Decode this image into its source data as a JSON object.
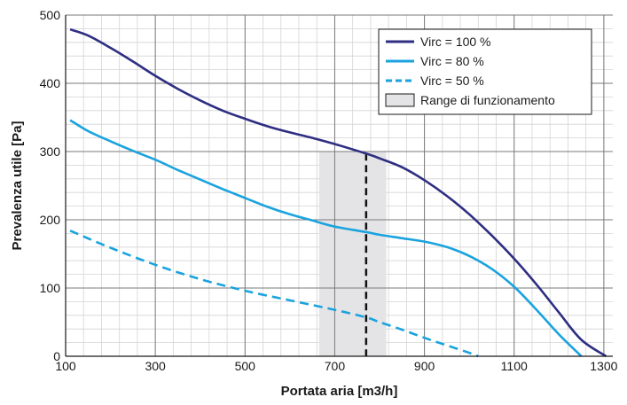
{
  "chart_data": {
    "type": "line",
    "title": "",
    "xlabel": "Portata aria [m3/h]",
    "ylabel": "Prevalenza utile [Pa]",
    "xlim": [
      100,
      1320
    ],
    "ylim": [
      0,
      500
    ],
    "x_ticks": [
      100,
      300,
      500,
      700,
      900,
      1100,
      1300
    ],
    "y_ticks": [
      0,
      100,
      200,
      300,
      400,
      500
    ],
    "x_minor_step": 40,
    "y_minor_step": 20,
    "grid": true,
    "legend_position": "top-right",
    "series": [
      {
        "name": "Virc = 100 %",
        "color": "#2e2e82",
        "style": "solid",
        "points": [
          [
            110,
            479
          ],
          [
            150,
            470
          ],
          [
            200,
            452
          ],
          [
            250,
            432
          ],
          [
            300,
            411
          ],
          [
            350,
            392
          ],
          [
            400,
            375
          ],
          [
            450,
            360
          ],
          [
            500,
            348
          ],
          [
            550,
            337
          ],
          [
            600,
            328
          ],
          [
            650,
            320
          ],
          [
            700,
            311
          ],
          [
            770,
            297
          ],
          [
            800,
            290
          ],
          [
            850,
            277
          ],
          [
            900,
            258
          ],
          [
            950,
            235
          ],
          [
            1000,
            208
          ],
          [
            1050,
            177
          ],
          [
            1100,
            143
          ],
          [
            1150,
            105
          ],
          [
            1200,
            64
          ],
          [
            1250,
            24
          ],
          [
            1305,
            0
          ]
        ]
      },
      {
        "name": "Virc = 80 %",
        "color": "#1aa3de",
        "style": "solid",
        "points": [
          [
            110,
            346
          ],
          [
            150,
            330
          ],
          [
            200,
            315
          ],
          [
            250,
            301
          ],
          [
            300,
            288
          ],
          [
            350,
            273
          ],
          [
            400,
            259
          ],
          [
            450,
            245
          ],
          [
            500,
            232
          ],
          [
            550,
            219
          ],
          [
            600,
            208
          ],
          [
            650,
            199
          ],
          [
            700,
            190
          ],
          [
            770,
            182
          ],
          [
            800,
            178
          ],
          [
            850,
            173
          ],
          [
            900,
            168
          ],
          [
            950,
            160
          ],
          [
            1000,
            147
          ],
          [
            1050,
            128
          ],
          [
            1100,
            102
          ],
          [
            1150,
            68
          ],
          [
            1200,
            32
          ],
          [
            1250,
            0
          ]
        ]
      },
      {
        "name": "Virc = 50 %",
        "color": "#1aa3de",
        "style": "dashed",
        "points": [
          [
            110,
            184
          ],
          [
            200,
            159
          ],
          [
            300,
            134
          ],
          [
            400,
            113
          ],
          [
            500,
            96
          ],
          [
            600,
            82
          ],
          [
            700,
            68
          ],
          [
            770,
            57
          ],
          [
            800,
            50
          ],
          [
            850,
            39
          ],
          [
            900,
            27
          ],
          [
            950,
            16
          ],
          [
            1000,
            5
          ],
          [
            1020,
            0
          ]
        ]
      }
    ],
    "operating_range": {
      "label": "Range di funzionamento",
      "x_from": 665,
      "x_to": 815,
      "y_to": 300,
      "fill": "#e4e4e6"
    },
    "marker_line": {
      "x": 770,
      "y_to": 297,
      "color": "#111111",
      "style": "dashed"
    }
  }
}
